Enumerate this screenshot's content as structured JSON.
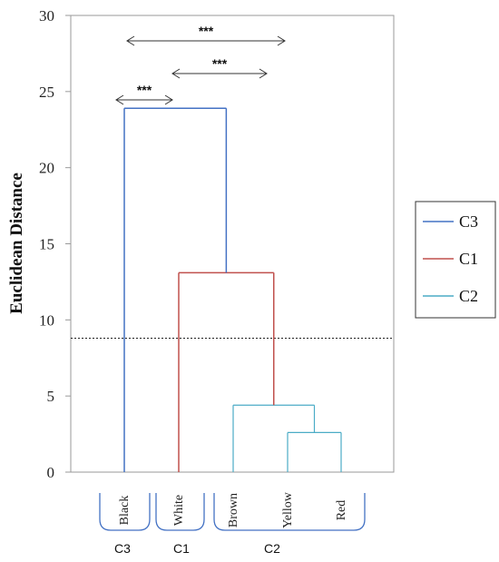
{
  "chart_data": {
    "type": "dendrogram",
    "ylabel": "Euclidean Distance",
    "ylim": [
      0,
      30
    ],
    "yticks": [
      0,
      5,
      10,
      15,
      20,
      25,
      30
    ],
    "leaves": [
      "Black",
      "White",
      "Brown",
      "Yellow",
      "Red"
    ],
    "threshold": 8.8,
    "merges": [
      {
        "left": [
          "Yellow"
        ],
        "right": [
          "Red"
        ],
        "height": 2.6,
        "cluster": "C2"
      },
      {
        "left": [
          "Brown"
        ],
        "right": [
          "Yellow",
          "Red"
        ],
        "height": 4.4,
        "cluster": "C2"
      },
      {
        "left": [
          "White"
        ],
        "right": [
          "Brown",
          "Yellow",
          "Red"
        ],
        "height": 13.1,
        "cluster": "C1"
      },
      {
        "left": [
          "Black"
        ],
        "right": [
          "White",
          "Brown",
          "Yellow",
          "Red"
        ],
        "height": 23.9,
        "cluster": "C3"
      }
    ],
    "groups": [
      {
        "label": "C3",
        "members": [
          "Black"
        ]
      },
      {
        "label": "C1",
        "members": [
          "White"
        ]
      },
      {
        "label": "C2",
        "members": [
          "Brown",
          "Yellow",
          "Red"
        ]
      }
    ],
    "significance": [
      {
        "from": "Black",
        "to": "White",
        "label": "***"
      },
      {
        "from": "White",
        "to": "Yellow",
        "label": "***"
      },
      {
        "from": "Black",
        "to": "Yellow",
        "label": "***"
      }
    ],
    "legend": {
      "position": "right",
      "entries": [
        {
          "label": "C3",
          "color": "#4472c4"
        },
        {
          "label": "C1",
          "color": "#c0504d"
        },
        {
          "label": "C2",
          "color": "#4bacc6"
        }
      ]
    }
  }
}
